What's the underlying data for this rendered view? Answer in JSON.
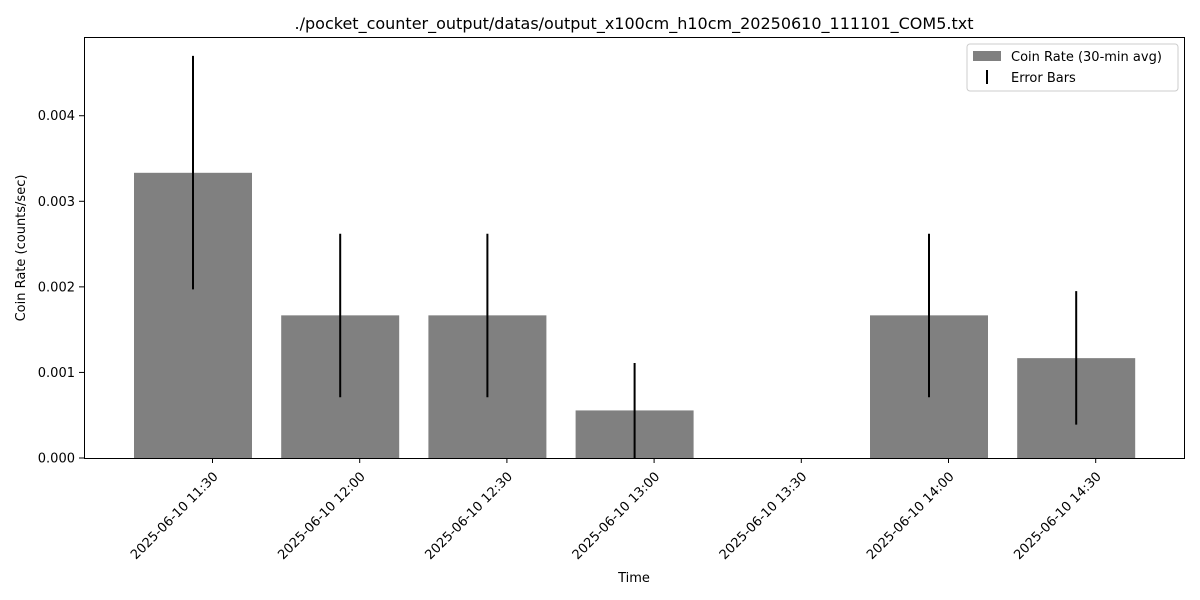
{
  "chart_data": {
    "type": "bar",
    "title": "./pocket_counter_output/datas/output_x100cm_h10cm_20250610_111101_COM5.txt",
    "xlabel": "Time",
    "ylabel": "Coin Rate (counts/sec)",
    "categories": [
      "2025-06-10 11:30",
      "2025-06-10 12:00",
      "2025-06-10 12:30",
      "2025-06-10 13:00",
      "2025-06-10 13:30",
      "2025-06-10 14:00",
      "2025-06-10 14:30"
    ],
    "series": [
      {
        "name": "Coin Rate (30-min avg)",
        "values": [
          0.003333,
          0.001667,
          0.001667,
          0.000556,
          0.0,
          0.001667,
          0.001167
        ],
        "color": "#808080"
      }
    ],
    "errors": {
      "name": "Error Bars",
      "lower": [
        0.00197,
        0.00071,
        0.00071,
        0.0,
        0.0,
        0.00071,
        0.00039
      ],
      "upper": [
        0.0047,
        0.00262,
        0.00262,
        0.00111,
        0.0,
        0.00262,
        0.00195
      ],
      "color": "#000000"
    },
    "ylim": [
      0,
      0.00492
    ],
    "yticks": [
      0.0,
      0.001,
      0.002,
      0.003,
      0.004
    ],
    "ytick_labels": [
      "0.000",
      "0.001",
      "0.002",
      "0.003",
      "0.004"
    ],
    "grid": false,
    "legend_position": "top-right"
  }
}
